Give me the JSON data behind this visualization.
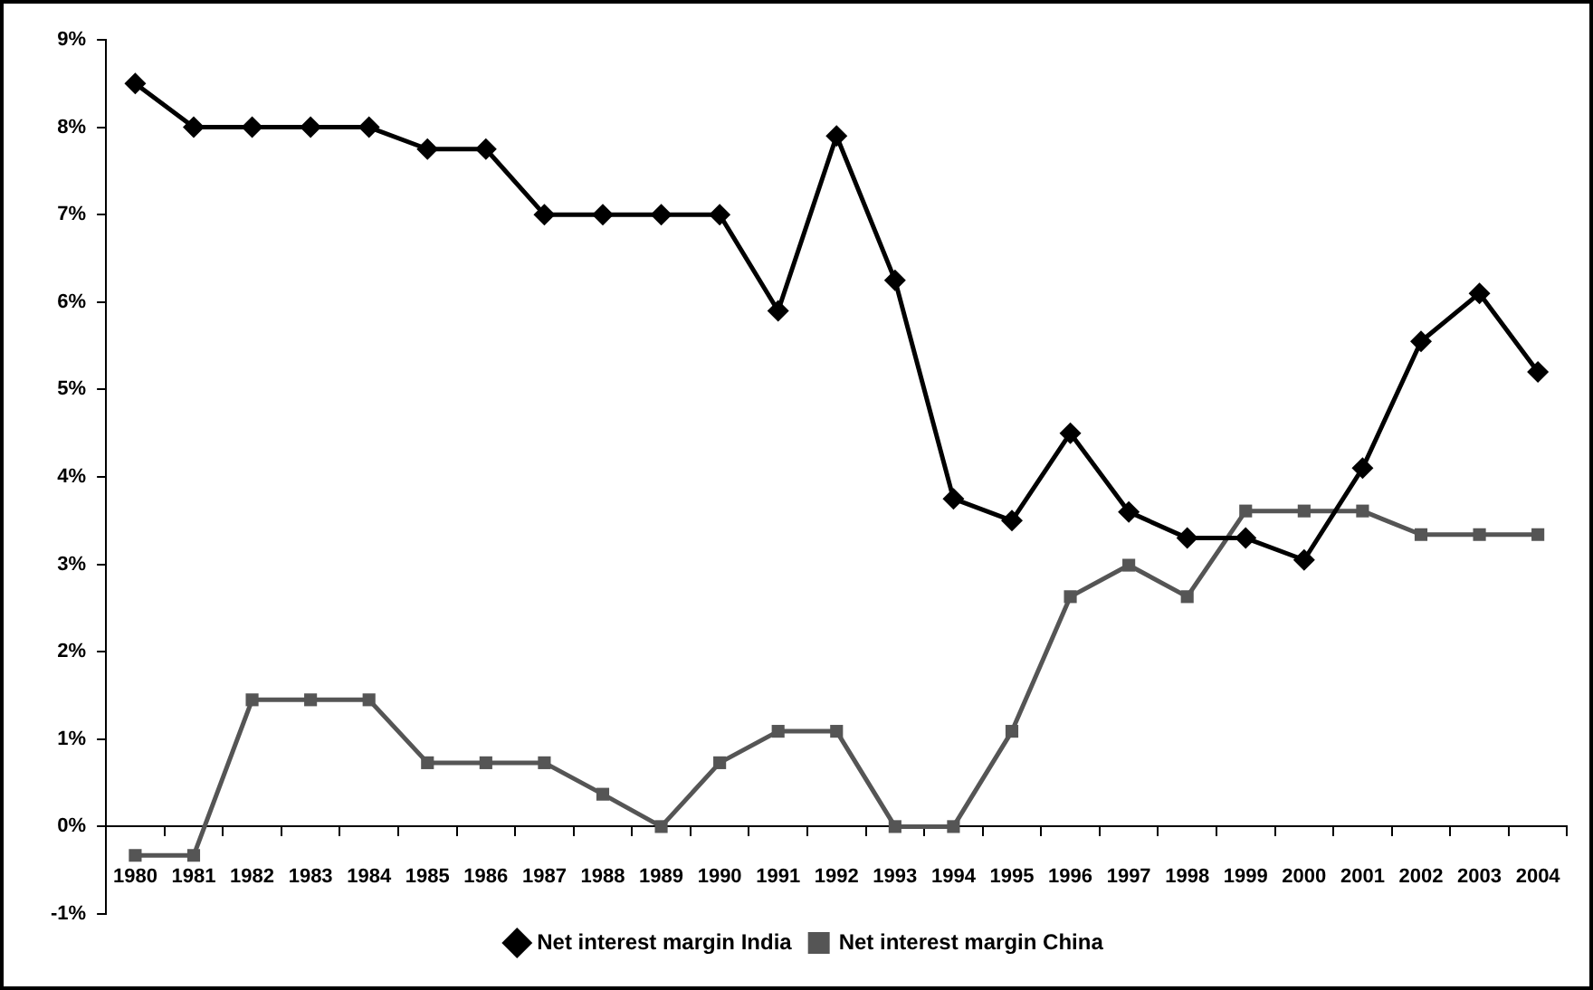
{
  "chart_data": {
    "type": "line",
    "categories": [
      "1980",
      "1981",
      "1982",
      "1983",
      "1984",
      "1985",
      "1986",
      "1987",
      "1988",
      "1989",
      "1990",
      "1991",
      "1992",
      "1993",
      "1994",
      "1995",
      "1996",
      "1997",
      "1998",
      "1999",
      "2000",
      "2001",
      "2002",
      "2003",
      "2004"
    ],
    "series": [
      {
        "name": "Net interest margin India",
        "color": "#000000",
        "marker": "diamond",
        "values": [
          8.5,
          8,
          8,
          8,
          8,
          7.75,
          7.75,
          7,
          7,
          7,
          7,
          5.9,
          7.9,
          6.25,
          3.75,
          3.5,
          4.5,
          3.6,
          3.3,
          3.3,
          3.05,
          4.1,
          5.55,
          6.1,
          5.2
        ]
      },
      {
        "name": "Net interest margin China",
        "color": "#555555",
        "marker": "square",
        "values": [
          -0.33,
          -0.33,
          1.45,
          1.45,
          1.45,
          0.73,
          0.73,
          0.73,
          0.37,
          0,
          0.73,
          1.09,
          1.09,
          0,
          0,
          1.09,
          2.63,
          2.99,
          2.63,
          3.61,
          3.61,
          3.61,
          3.34,
          3.34,
          3.34
        ]
      }
    ],
    "ylim": [
      -1,
      9
    ],
    "yticks": [
      {
        "value": -1,
        "label": "-1%"
      },
      {
        "value": 0,
        "label": "0%"
      },
      {
        "value": 1,
        "label": "1%"
      },
      {
        "value": 2,
        "label": "2%"
      },
      {
        "value": 3,
        "label": "3%"
      },
      {
        "value": 4,
        "label": "4%"
      },
      {
        "value": 5,
        "label": "5%"
      },
      {
        "value": 6,
        "label": "6%"
      },
      {
        "value": 7,
        "label": "7%"
      },
      {
        "value": 8,
        "label": "8%"
      },
      {
        "value": 9,
        "label": "9%"
      }
    ],
    "grid": false,
    "legend": "bottom",
    "line_style": "solid"
  }
}
